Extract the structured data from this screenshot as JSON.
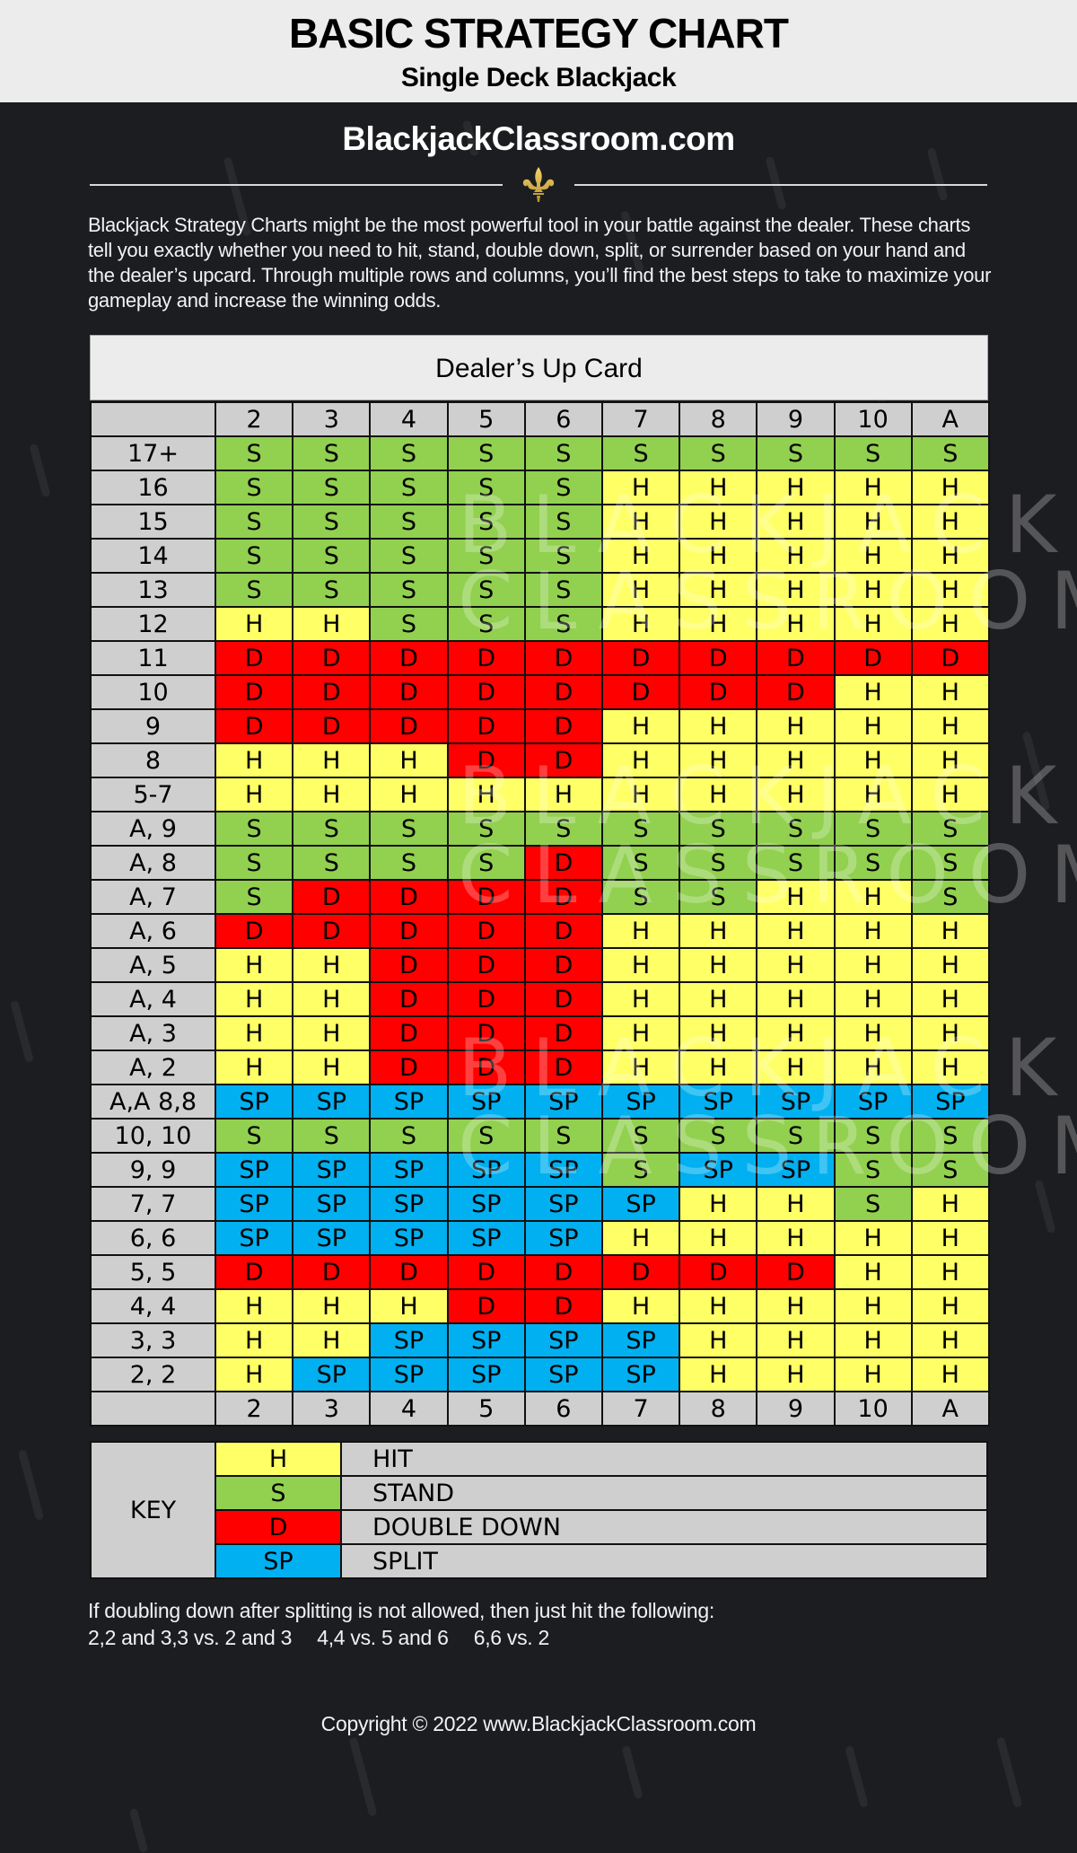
{
  "header": {
    "title": "BASIC STRATEGY CHART",
    "subtitle": "Single Deck Blackjack",
    "site": "BlackjackClassroom.com",
    "ornament_icon": "fleur-de-lis-icon"
  },
  "intro": "Blackjack Strategy Charts might be the most powerful tool in your battle against the dealer. These charts tell you exactly whether you need to hit, stand, double down, split, or surrender based on your hand and the dealer’s upcard. Through multiple rows and columns, you’ll find the best steps to take to maximize your gameplay and increase the winning odds.",
  "colors": {
    "H": "#ffff66",
    "S": "#92d050",
    "D": "#ff0000",
    "SP": "#00b0f0",
    "label_bg": "#cfcfcf",
    "page_bg": "#1c1d21"
  },
  "watermark": {
    "line1": "BLACKJACK",
    "line2": "CLASSROOM"
  },
  "chart_data": {
    "type": "table",
    "title": "Dealer’s Up Card",
    "columns": [
      "2",
      "3",
      "4",
      "5",
      "6",
      "7",
      "8",
      "9",
      "10",
      "A"
    ],
    "rows": [
      {
        "hand": "17+",
        "actions": [
          "S",
          "S",
          "S",
          "S",
          "S",
          "S",
          "S",
          "S",
          "S",
          "S"
        ]
      },
      {
        "hand": "16",
        "actions": [
          "S",
          "S",
          "S",
          "S",
          "S",
          "H",
          "H",
          "H",
          "H",
          "H"
        ]
      },
      {
        "hand": "15",
        "actions": [
          "S",
          "S",
          "S",
          "S",
          "S",
          "H",
          "H",
          "H",
          "H",
          "H"
        ]
      },
      {
        "hand": "14",
        "actions": [
          "S",
          "S",
          "S",
          "S",
          "S",
          "H",
          "H",
          "H",
          "H",
          "H"
        ]
      },
      {
        "hand": "13",
        "actions": [
          "S",
          "S",
          "S",
          "S",
          "S",
          "H",
          "H",
          "H",
          "H",
          "H"
        ]
      },
      {
        "hand": "12",
        "actions": [
          "H",
          "H",
          "S",
          "S",
          "S",
          "H",
          "H",
          "H",
          "H",
          "H"
        ]
      },
      {
        "hand": "11",
        "actions": [
          "D",
          "D",
          "D",
          "D",
          "D",
          "D",
          "D",
          "D",
          "D",
          "D"
        ]
      },
      {
        "hand": "10",
        "actions": [
          "D",
          "D",
          "D",
          "D",
          "D",
          "D",
          "D",
          "D",
          "H",
          "H"
        ]
      },
      {
        "hand": "9",
        "actions": [
          "D",
          "D",
          "D",
          "D",
          "D",
          "H",
          "H",
          "H",
          "H",
          "H"
        ]
      },
      {
        "hand": "8",
        "actions": [
          "H",
          "H",
          "H",
          "D",
          "D",
          "H",
          "H",
          "H",
          "H",
          "H"
        ]
      },
      {
        "hand": "5-7",
        "actions": [
          "H",
          "H",
          "H",
          "H",
          "H",
          "H",
          "H",
          "H",
          "H",
          "H"
        ]
      },
      {
        "hand": "A, 9",
        "actions": [
          "S",
          "S",
          "S",
          "S",
          "S",
          "S",
          "S",
          "S",
          "S",
          "S"
        ]
      },
      {
        "hand": "A, 8",
        "actions": [
          "S",
          "S",
          "S",
          "S",
          "D",
          "S",
          "S",
          "S",
          "S",
          "S"
        ]
      },
      {
        "hand": "A, 7",
        "actions": [
          "S",
          "D",
          "D",
          "D",
          "D",
          "S",
          "S",
          "H",
          "H",
          "S"
        ]
      },
      {
        "hand": "A, 6",
        "actions": [
          "D",
          "D",
          "D",
          "D",
          "D",
          "H",
          "H",
          "H",
          "H",
          "H"
        ]
      },
      {
        "hand": "A, 5",
        "actions": [
          "H",
          "H",
          "D",
          "D",
          "D",
          "H",
          "H",
          "H",
          "H",
          "H"
        ]
      },
      {
        "hand": "A, 4",
        "actions": [
          "H",
          "H",
          "D",
          "D",
          "D",
          "H",
          "H",
          "H",
          "H",
          "H"
        ]
      },
      {
        "hand": "A, 3",
        "actions": [
          "H",
          "H",
          "D",
          "D",
          "D",
          "H",
          "H",
          "H",
          "H",
          "H"
        ]
      },
      {
        "hand": "A, 2",
        "actions": [
          "H",
          "H",
          "D",
          "D",
          "D",
          "H",
          "H",
          "H",
          "H",
          "H"
        ]
      },
      {
        "hand": "A,A 8,8",
        "actions": [
          "SP",
          "SP",
          "SP",
          "SP",
          "SP",
          "SP",
          "SP",
          "SP",
          "SP",
          "SP"
        ]
      },
      {
        "hand": "10, 10",
        "actions": [
          "S",
          "S",
          "S",
          "S",
          "S",
          "S",
          "S",
          "S",
          "S",
          "S"
        ]
      },
      {
        "hand": "9, 9",
        "actions": [
          "SP",
          "SP",
          "SP",
          "SP",
          "SP",
          "S",
          "SP",
          "SP",
          "S",
          "S"
        ]
      },
      {
        "hand": "7, 7",
        "actions": [
          "SP",
          "SP",
          "SP",
          "SP",
          "SP",
          "SP",
          "H",
          "H",
          "S",
          "H"
        ]
      },
      {
        "hand": "6, 6",
        "actions": [
          "SP",
          "SP",
          "SP",
          "SP",
          "SP",
          "H",
          "H",
          "H",
          "H",
          "H"
        ]
      },
      {
        "hand": "5, 5",
        "actions": [
          "D",
          "D",
          "D",
          "D",
          "D",
          "D",
          "D",
          "D",
          "H",
          "H"
        ]
      },
      {
        "hand": "4, 4",
        "actions": [
          "H",
          "H",
          "H",
          "D",
          "D",
          "H",
          "H",
          "H",
          "H",
          "H"
        ]
      },
      {
        "hand": "3, 3",
        "actions": [
          "H",
          "H",
          "SP",
          "SP",
          "SP",
          "SP",
          "H",
          "H",
          "H",
          "H"
        ]
      },
      {
        "hand": "2, 2",
        "actions": [
          "H",
          "SP",
          "SP",
          "SP",
          "SP",
          "SP",
          "H",
          "H",
          "H",
          "H"
        ]
      }
    ],
    "legend": [
      {
        "code": "H",
        "label": "HIT"
      },
      {
        "code": "S",
        "label": "STAND"
      },
      {
        "code": "D",
        "label": "DOUBLE DOWN"
      },
      {
        "code": "SP",
        "label": "SPLIT"
      }
    ]
  },
  "key": {
    "title": "KEY",
    "items": [
      {
        "code": "H",
        "label": "HIT"
      },
      {
        "code": "S",
        "label": "STAND"
      },
      {
        "code": "D",
        "label": "DOUBLE DOWN"
      },
      {
        "code": "SP",
        "label": "SPLIT"
      }
    ]
  },
  "note": {
    "line1": "If doubling down after splitting is not allowed, then just hit the following:",
    "items": [
      "2,2 and 3,3 vs. 2 and 3",
      "4,4 vs. 5 and 6",
      "6,6 vs. 2"
    ]
  },
  "footer": {
    "copyright": "Copyright © 2022 www.BlackjackClassroom.com"
  }
}
